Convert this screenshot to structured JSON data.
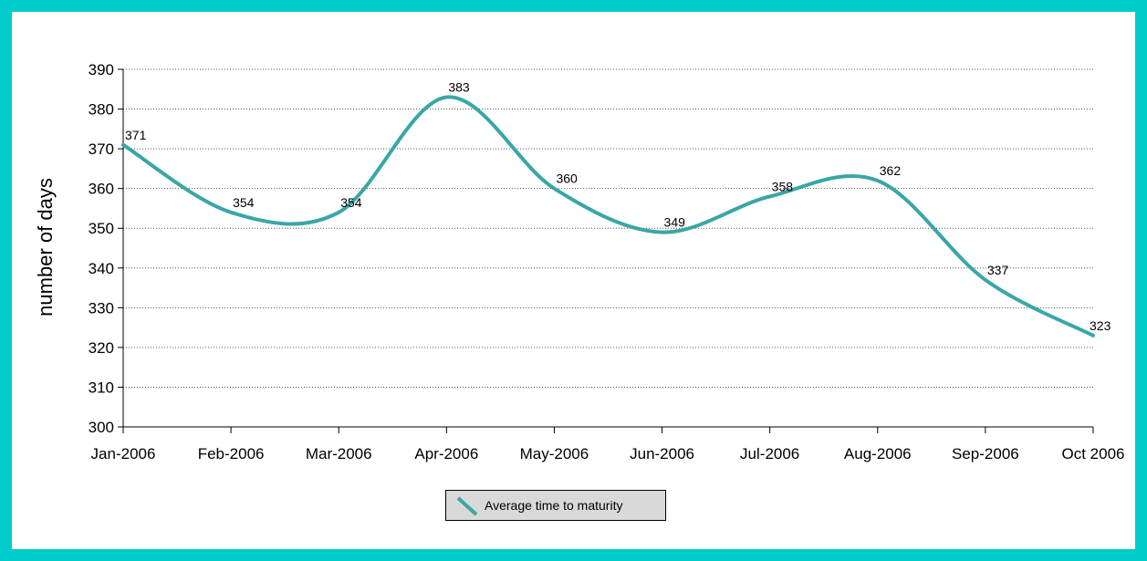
{
  "chart_data": {
    "type": "line",
    "categories": [
      "Jan-2006",
      "Feb-2006",
      "Mar-2006",
      "Apr-2006",
      "May-2006",
      "Jun-2006",
      "Jul-2006",
      "Aug-2006",
      "Sep-2006",
      "Oct 2006"
    ],
    "series": [
      {
        "name": "Average time to maturity",
        "values": [
          371,
          354,
          354,
          383,
          360,
          349,
          358,
          362,
          337,
          323
        ],
        "color": "#3AA6A6",
        "smooth": true
      }
    ],
    "ylabel": "number of days",
    "ylim": [
      300,
      390
    ],
    "yticks": [
      300,
      310,
      320,
      330,
      340,
      350,
      360,
      370,
      380,
      390
    ],
    "grid": "horizontal-dotted",
    "data_labels": true,
    "legend_position": "bottom"
  }
}
